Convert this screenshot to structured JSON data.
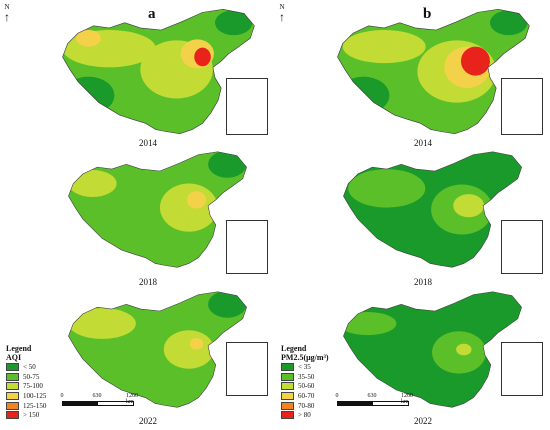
{
  "panels": [
    {
      "letter": "a"
    },
    {
      "letter": "b"
    }
  ],
  "north_label": "N",
  "years": [
    "2014",
    "2018",
    "2022"
  ],
  "legend_a": {
    "title": "Legend",
    "subtitle": "AQI",
    "items": [
      {
        "label": "< 50",
        "color": "#1a9a2a"
      },
      {
        "label": "50-75",
        "color": "#5bbf2a"
      },
      {
        "label": "75-100",
        "color": "#c3dc35"
      },
      {
        "label": "100-125",
        "color": "#f3d24a"
      },
      {
        "label": "125-150",
        "color": "#ef8420"
      },
      {
        "label": "> 150",
        "color": "#e8231b"
      }
    ]
  },
  "legend_b": {
    "title": "Legend",
    "subtitle": "PM2.5(μg/m³)",
    "items": [
      {
        "label": "< 35",
        "color": "#1a9a2a"
      },
      {
        "label": "35-50",
        "color": "#5bbf2a"
      },
      {
        "label": "50-60",
        "color": "#c3dc35"
      },
      {
        "label": "60-70",
        "color": "#f3d24a"
      },
      {
        "label": "70-80",
        "color": "#ef8420"
      },
      {
        "label": "> 80",
        "color": "#e8231b"
      }
    ]
  },
  "scalebar": {
    "ticks": [
      "0",
      "630",
      "1260 km"
    ]
  }
}
